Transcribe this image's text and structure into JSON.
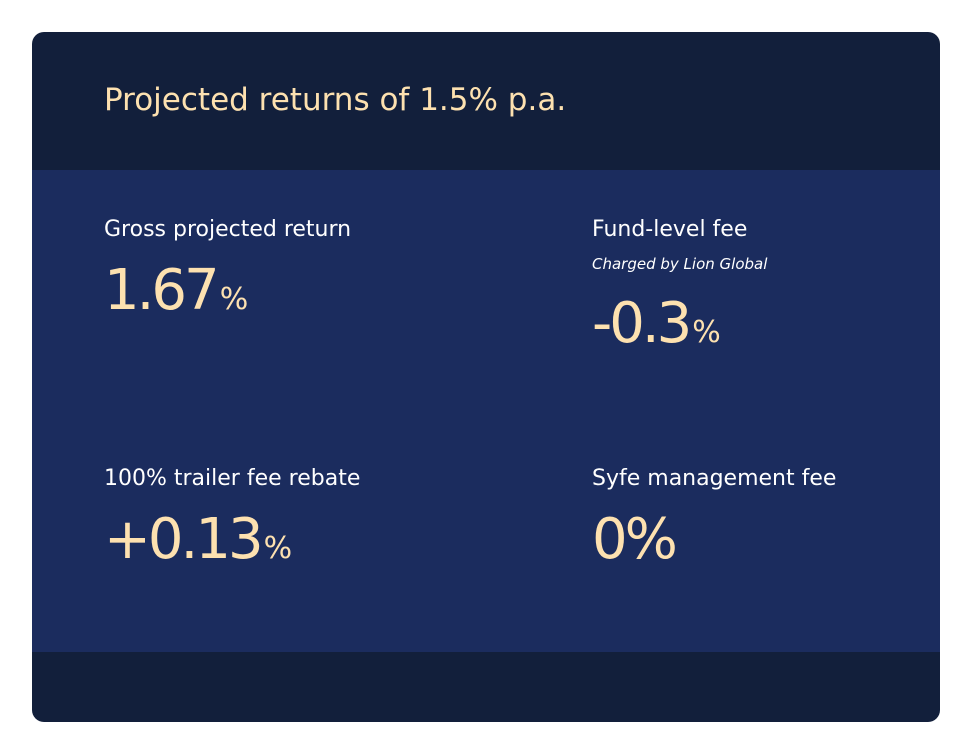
{
  "title": "Projected returns of 1.5% p.a.",
  "metrics": {
    "gross": {
      "label": "Gross projected return",
      "value": "1.67",
      "unit": "%"
    },
    "fund": {
      "label": "Fund-level fee",
      "sublabel": "Charged by Lion Global",
      "value": "-0.3",
      "unit": "%"
    },
    "trailer": {
      "label": "100% trailer fee rebate",
      "value": "+0.13",
      "unit": "%"
    },
    "syfe": {
      "label": "Syfe management fee",
      "value": "0%"
    }
  },
  "colors": {
    "card_background": "#121f3b",
    "panel_background": "#1b2c5e",
    "accent": "#fde1b0",
    "label_text": "#ffffff"
  }
}
